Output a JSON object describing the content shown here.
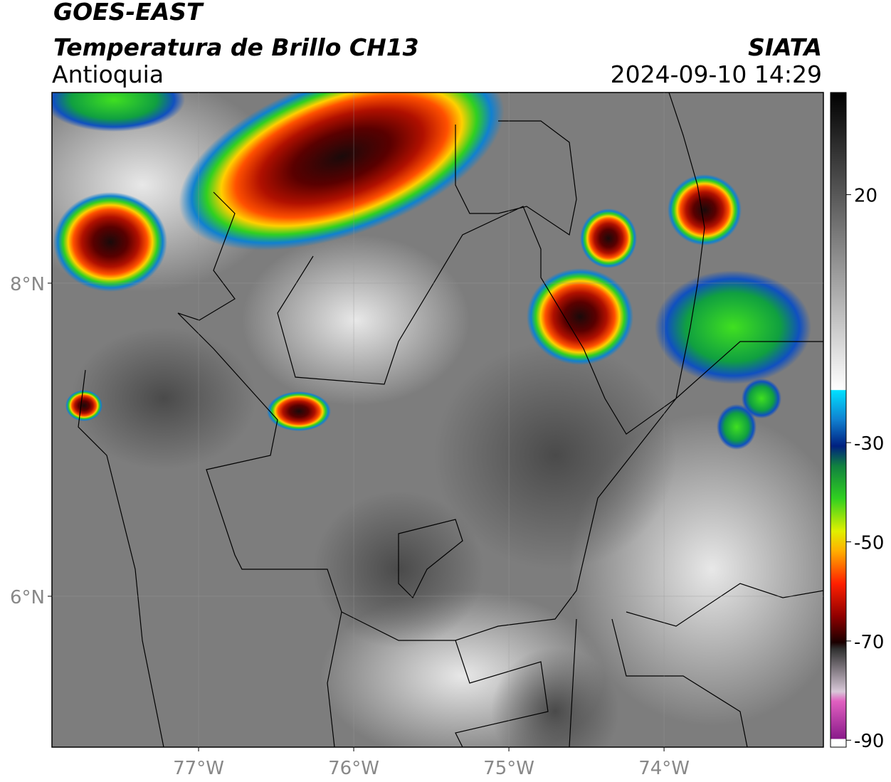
{
  "header": {
    "title": "GOES-EAST",
    "subtitle": "Temperatura de Brillo CH13",
    "region": "Antioquia",
    "source": "SIATA",
    "datetime": "2024-09-10 14:29"
  },
  "map": {
    "xlim": [
      -77.945,
      -72.973
    ],
    "ylim": [
      5.036,
      9.218
    ],
    "xticks": [
      {
        "value": -77,
        "label": "77°W"
      },
      {
        "value": -76,
        "label": "76°W"
      },
      {
        "value": -75,
        "label": "75°W"
      },
      {
        "value": -74,
        "label": "74°W"
      }
    ],
    "yticks": [
      {
        "value": 8,
        "label": "8°N"
      },
      {
        "value": 6,
        "label": "6°N"
      }
    ]
  },
  "colorbar": {
    "lim": [
      -91.4,
      40.6
    ],
    "ticks": [
      20,
      -30,
      -50,
      -70,
      -90
    ]
  }
}
